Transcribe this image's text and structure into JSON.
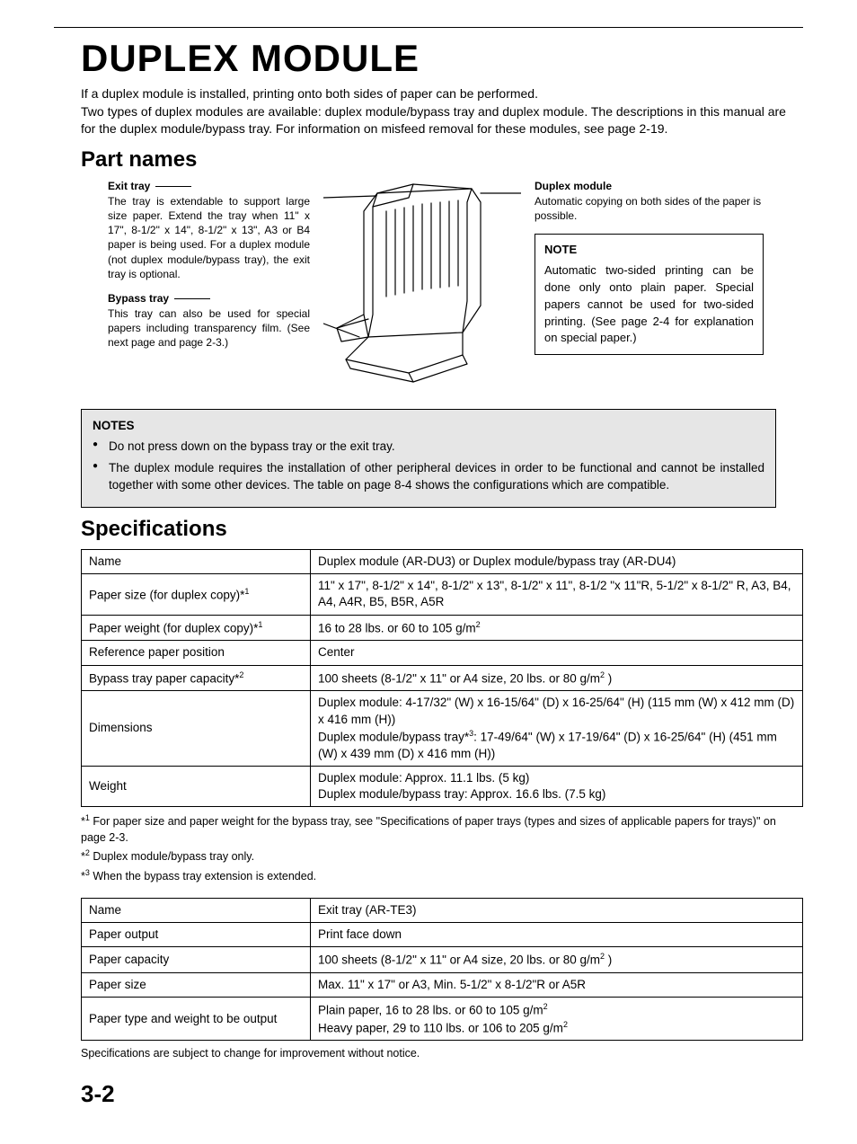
{
  "title": "DUPLEX MODULE",
  "intro": "If a duplex module is installed, printing onto both sides of paper can be performed.\nTwo types of duplex modules are available: duplex module/bypass tray and duplex module. The descriptions in this manual are for the duplex module/bypass tray. For information on misfeed removal for these modules, see page 2-19.",
  "section_partnames": "Part names",
  "exit_tray": {
    "head": "Exit tray",
    "body": "The tray is extendable to support large size paper. Extend the tray when 11\" x 17\", 8-1/2\" x 14\", 8-1/2\" x 13\", A3 or B4 paper is being used. For a duplex module (not duplex module/bypass tray), the exit tray is optional."
  },
  "bypass_tray": {
    "head": "Bypass tray",
    "body": "This tray can also be used for special papers including transparency film. (See next page and page 2-3.)"
  },
  "duplex_module": {
    "head": "Duplex module",
    "body": "Automatic copying on both sides of the paper is possible."
  },
  "note_box": {
    "head": "NOTE",
    "body": "Automatic two-sided printing can be done only onto plain paper. Special papers cannot be used for two-sided printing. (See page 2-4 for explanation on special paper.)"
  },
  "notes_grey": {
    "head": "NOTES",
    "items": [
      "Do not press down on the bypass tray or the exit tray.",
      "The duplex module requires the installation of other peripheral devices in order to be functional and cannot be installed together with some other devices. The table on page 8-4 shows the configurations which are compatible."
    ]
  },
  "section_specs": "Specifications",
  "spec_table1": {
    "rows": [
      [
        "Name",
        "Duplex module (AR-DU3) or Duplex module/bypass tray (AR-DU4)"
      ],
      [
        "Paper size (for duplex copy)*1",
        "11\" x 17\", 8-1/2\" x 14\", 8-1/2\" x 13\", 8-1/2\" x 11\", 8-1/2 \"x 11\"R, 5-1/2\" x 8-1/2\" R, A3, B4, A4, A4R, B5, B5R, A5R"
      ],
      [
        "Paper weight (for duplex copy)*1",
        "16 to 28 lbs. or 60 to 105 g/m2"
      ],
      [
        "Reference paper position",
        "Center"
      ],
      [
        "Bypass tray paper capacity*2",
        "100 sheets (8-1/2\" x 11\" or A4 size, 20 lbs. or 80 g/m2 )"
      ],
      [
        "Dimensions",
        "Duplex module: 4-17/32\" (W) x 16-15/64\" (D) x 16-25/64\" (H) (115 mm (W) x 412 mm (D) x 416 mm (H))\nDuplex module/bypass tray*3: 17-49/64\" (W) x 17-19/64\" (D) x 16-25/64\" (H) (451 mm (W) x 439 mm (D) x 416 mm (H))"
      ],
      [
        "Weight",
        "Duplex module: Approx. 11.1 lbs. (5 kg)\nDuplex module/bypass tray: Approx. 16.6 lbs. (7.5 kg)"
      ]
    ]
  },
  "footnotes1": [
    "*1  For paper size and paper weight for the bypass tray, see \"Specifications of paper trays (types and sizes of applicable papers for trays)\" on page 2-3.",
    "*2  Duplex module/bypass tray only.",
    "*3  When the bypass tray extension is extended."
  ],
  "spec_table2": {
    "rows": [
      [
        "Name",
        "Exit tray (AR-TE3)"
      ],
      [
        "Paper output",
        "Print face down"
      ],
      [
        "Paper capacity",
        "100 sheets (8-1/2\" x 11\" or A4 size, 20 lbs. or 80 g/m2 )"
      ],
      [
        "Paper size",
        "Max. 11\" x 17\" or A3, Min. 5-1/2\" x 8-1/2\"R or A5R"
      ],
      [
        "Paper type and weight to be output",
        "Plain paper, 16 to 28 lbs. or 60 to 105 g/m2\nHeavy paper, 29 to 110 lbs. or 106 to 205 g/m2"
      ]
    ]
  },
  "footnote_change": "Specifications are subject to change for improvement without notice.",
  "page_number": "3-2",
  "colors": {
    "grey_box": "#e6e6e6",
    "text": "#000000",
    "bg": "#ffffff"
  }
}
